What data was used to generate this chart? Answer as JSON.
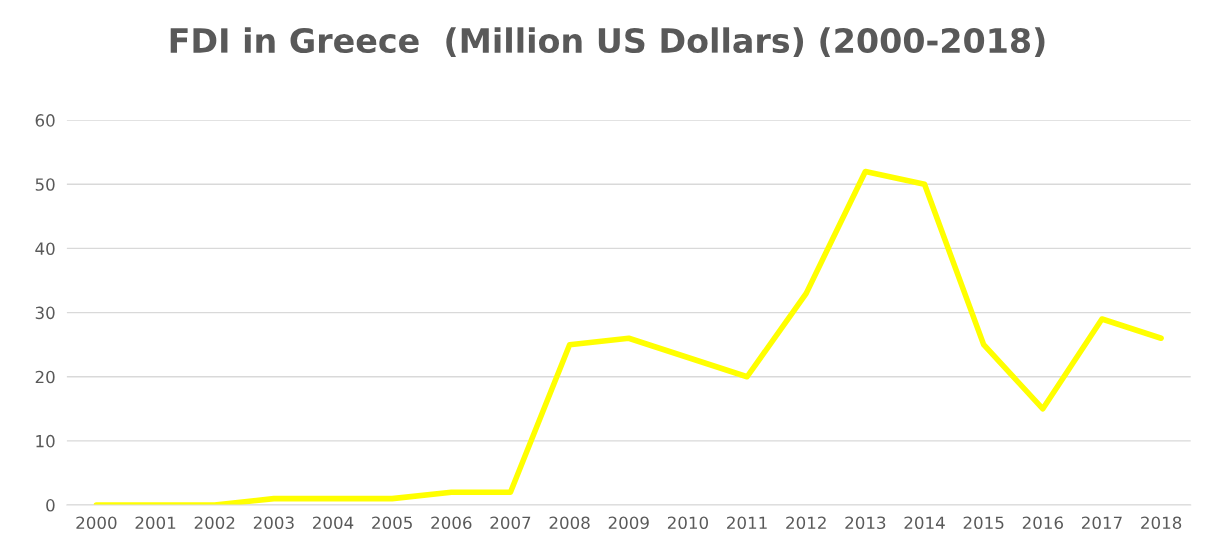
{
  "chart_data": {
    "type": "line",
    "title": "FDI in Greece  (Million US Dollars) (2000-2018)",
    "categories": [
      "2000",
      "2001",
      "2002",
      "2003",
      "2004",
      "2005",
      "2006",
      "2007",
      "2008",
      "2009",
      "2010",
      "2011",
      "2012",
      "2013",
      "2014",
      "2015",
      "2016",
      "2017",
      "2018"
    ],
    "series": [
      {
        "color": "#ffff00",
        "values": [
          0,
          0,
          0,
          1,
          1,
          1,
          2,
          2,
          25,
          26,
          23,
          20,
          33,
          52,
          50,
          25,
          15,
          29,
          26
        ]
      }
    ],
    "ylim": [
      0,
      60
    ],
    "yticks": [
      0,
      10,
      20,
      30,
      40,
      50,
      60
    ],
    "grid": "y",
    "legend": false,
    "marker": "none",
    "line_style": "solid"
  }
}
